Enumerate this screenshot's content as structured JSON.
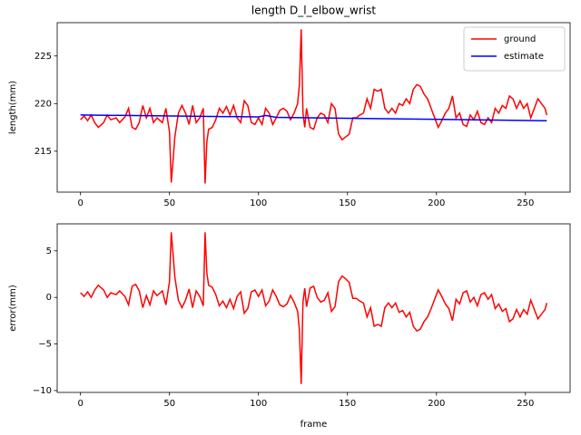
{
  "chart_data": [
    {
      "type": "line",
      "title": "length D_l_elbow_wrist",
      "ylabel": "length(mm)",
      "xlim": [
        -13.1,
        275.1
      ],
      "ylim": [
        210.7,
        228.5
      ],
      "xticks": [
        0,
        50,
        100,
        150,
        200,
        250
      ],
      "yticks": [
        215,
        220,
        225
      ],
      "legend": "upper right",
      "series": [
        {
          "name": "ground",
          "color": "#ff0000",
          "x": [
            0,
            2,
            4,
            6,
            8,
            10,
            13,
            15,
            17,
            20,
            22,
            25,
            27,
            29,
            31,
            33,
            35,
            37,
            39,
            41,
            43,
            46,
            48,
            50,
            51,
            52,
            53,
            55,
            57,
            59,
            61,
            63,
            65,
            67,
            69,
            70,
            71,
            72,
            74,
            76,
            78,
            80,
            82,
            84,
            86,
            88,
            90,
            92,
            94,
            96,
            98,
            100,
            102,
            104,
            106,
            108,
            110,
            112,
            114,
            116,
            118,
            120,
            122,
            123,
            124,
            125,
            126,
            127,
            129,
            131,
            133,
            135,
            137,
            139,
            141,
            143,
            145,
            147,
            149,
            151,
            153,
            155,
            157,
            159,
            161,
            163,
            165,
            167,
            169,
            171,
            173,
            175,
            177,
            179,
            181,
            183,
            185,
            187,
            189,
            191,
            193,
            195,
            197,
            199,
            201,
            203,
            205,
            207,
            209,
            211,
            213,
            215,
            217,
            219,
            221,
            223,
            225,
            227,
            229,
            231,
            233,
            235,
            237,
            239,
            241,
            243,
            245,
            247,
            249,
            251,
            253,
            255,
            257,
            259,
            261,
            262
          ],
          "values": [
            218.3,
            218.7,
            218.2,
            218.8,
            218.0,
            217.5,
            218.0,
            218.8,
            218.3,
            218.5,
            218.0,
            218.6,
            219.5,
            217.5,
            217.3,
            218.0,
            219.8,
            218.5,
            219.5,
            218.0,
            218.5,
            218.0,
            219.5,
            217.0,
            211.7,
            214.0,
            216.5,
            219.0,
            219.8,
            219.0,
            217.8,
            219.8,
            218.0,
            218.5,
            219.5,
            211.6,
            216.0,
            217.3,
            217.5,
            218.3,
            219.5,
            219.0,
            219.7,
            218.8,
            219.8,
            218.5,
            218.0,
            220.3,
            219.8,
            218.0,
            217.8,
            218.5,
            217.8,
            219.5,
            219.0,
            217.8,
            218.5,
            219.3,
            219.5,
            219.2,
            218.3,
            219.0,
            220.0,
            222.0,
            227.8,
            219.0,
            217.5,
            219.5,
            217.5,
            217.3,
            218.5,
            219.0,
            218.8,
            218.0,
            220.0,
            219.5,
            216.8,
            216.2,
            216.5,
            216.8,
            218.5,
            218.5,
            218.8,
            219.0,
            220.5,
            219.5,
            221.5,
            221.3,
            221.5,
            219.5,
            219.0,
            219.5,
            219.0,
            220.0,
            219.8,
            220.5,
            220.0,
            221.5,
            222.0,
            221.8,
            221.0,
            220.5,
            219.5,
            218.5,
            217.5,
            218.2,
            219.0,
            219.5,
            220.8,
            218.5,
            219.0,
            217.8,
            217.6,
            218.8,
            218.3,
            219.2,
            218.0,
            217.8,
            218.5,
            218.0,
            219.5,
            219.0,
            219.8,
            219.5,
            220.8,
            220.5,
            219.5,
            220.3,
            219.5,
            220.0,
            218.5,
            219.5,
            220.5,
            220.0,
            219.5,
            218.8
          ]
        },
        {
          "name": "estimate",
          "color": "#0000ff",
          "x": [
            0,
            100,
            104,
            110,
            262
          ],
          "values": [
            218.8,
            218.6,
            218.75,
            218.55,
            218.2
          ]
        }
      ]
    },
    {
      "type": "line",
      "ylabel": "error(mm)",
      "xlabel": "frame",
      "xlim": [
        -13.1,
        275.1
      ],
      "ylim": [
        -10.2,
        7.9
      ],
      "xticks": [
        0,
        50,
        100,
        150,
        200,
        250
      ],
      "yticks": [
        {
          "value": -10,
          "label": "−10"
        },
        {
          "value": -5,
          "label": "−5"
        },
        0,
        5
      ],
      "series": [
        {
          "color": "#ff0000",
          "x": [
            0,
            2,
            4,
            6,
            8,
            10,
            13,
            15,
            17,
            20,
            22,
            25,
            27,
            29,
            31,
            33,
            35,
            37,
            39,
            41,
            43,
            46,
            48,
            50,
            51,
            52,
            53,
            55,
            57,
            59,
            61,
            63,
            65,
            67,
            69,
            70,
            71,
            72,
            74,
            76,
            78,
            80,
            82,
            84,
            86,
            88,
            90,
            92,
            94,
            96,
            98,
            100,
            102,
            104,
            106,
            108,
            110,
            112,
            114,
            116,
            118,
            120,
            122,
            123,
            124,
            125,
            126,
            127,
            129,
            131,
            133,
            135,
            137,
            139,
            141,
            143,
            145,
            147,
            149,
            151,
            153,
            155,
            157,
            159,
            161,
            163,
            165,
            167,
            169,
            171,
            173,
            175,
            177,
            179,
            181,
            183,
            185,
            187,
            189,
            191,
            193,
            195,
            197,
            199,
            201,
            203,
            205,
            207,
            209,
            211,
            213,
            215,
            217,
            219,
            221,
            223,
            225,
            227,
            229,
            231,
            233,
            235,
            237,
            239,
            241,
            243,
            245,
            247,
            249,
            251,
            253,
            255,
            257,
            259,
            261,
            262
          ],
          "values": [
            0.5,
            0.1,
            0.6,
            0.0,
            0.8,
            1.3,
            0.8,
            0.0,
            0.5,
            0.3,
            0.7,
            0.1,
            -0.8,
            1.2,
            1.4,
            0.7,
            -1.1,
            0.2,
            -0.8,
            0.7,
            0.2,
            0.7,
            -0.8,
            1.7,
            7.0,
            4.7,
            2.2,
            -0.3,
            -1.1,
            -0.3,
            0.9,
            -1.1,
            0.7,
            0.1,
            -0.9,
            7.0,
            2.6,
            1.3,
            1.1,
            0.3,
            -0.9,
            -0.4,
            -1.1,
            -0.2,
            -1.2,
            0.1,
            0.6,
            -1.7,
            -1.2,
            0.6,
            0.8,
            0.1,
            0.8,
            -0.9,
            -0.4,
            0.8,
            0.1,
            -0.8,
            -1.0,
            -0.7,
            0.2,
            -0.5,
            -1.5,
            -3.5,
            -9.3,
            -0.5,
            1.0,
            -1.0,
            1.0,
            1.2,
            0.0,
            -0.5,
            -0.3,
            0.5,
            -1.5,
            -1.0,
            1.7,
            2.3,
            2.0,
            1.6,
            -0.1,
            -0.1,
            -0.4,
            -0.6,
            -2.1,
            -1.1,
            -3.1,
            -2.9,
            -3.1,
            -1.1,
            -0.6,
            -1.1,
            -0.6,
            -1.6,
            -1.4,
            -2.1,
            -1.6,
            -3.1,
            -3.6,
            -3.4,
            -2.6,
            -2.1,
            -1.2,
            -0.2,
            0.8,
            0.1,
            -0.7,
            -1.2,
            -2.5,
            -0.2,
            -0.7,
            0.5,
            0.7,
            -0.5,
            0.0,
            -0.9,
            0.3,
            0.5,
            -0.2,
            0.3,
            -1.2,
            -0.7,
            -1.5,
            -1.2,
            -2.6,
            -2.3,
            -1.3,
            -2.1,
            -1.3,
            -1.8,
            -0.3,
            -1.3,
            -2.3,
            -1.8,
            -1.3,
            -0.6
          ]
        }
      ]
    }
  ]
}
